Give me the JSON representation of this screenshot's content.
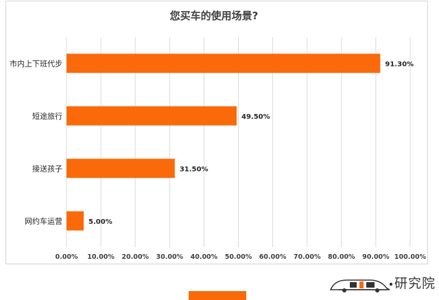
{
  "chart_data": {
    "type": "bar",
    "orientation": "horizontal",
    "title": "您买车的使用场景?",
    "categories": [
      "市内上下班代步",
      "短途旅行",
      "接送孩子",
      "网约车运营"
    ],
    "values": [
      91.3,
      49.5,
      31.5,
      5.0
    ],
    "data_labels": [
      "91.30%",
      "49.50%",
      "31.50%",
      "5.00%"
    ],
    "xlim": [
      0,
      100
    ],
    "x_ticks": [
      0,
      10,
      20,
      30,
      40,
      50,
      60,
      70,
      80,
      90,
      100
    ],
    "x_tick_labels": [
      "0.00%",
      "10.00%",
      "20.00%",
      "30.00%",
      "40.00%",
      "50.00%",
      "60.00%",
      "70.00%",
      "80.00%",
      "90.00%",
      "100.00%"
    ],
    "grid": true,
    "bar_color": "#fa6a0a"
  },
  "logo": {
    "text": "研究院",
    "icon": "car-logo-icon"
  },
  "colors": {
    "accent": "#fa6a0a"
  }
}
